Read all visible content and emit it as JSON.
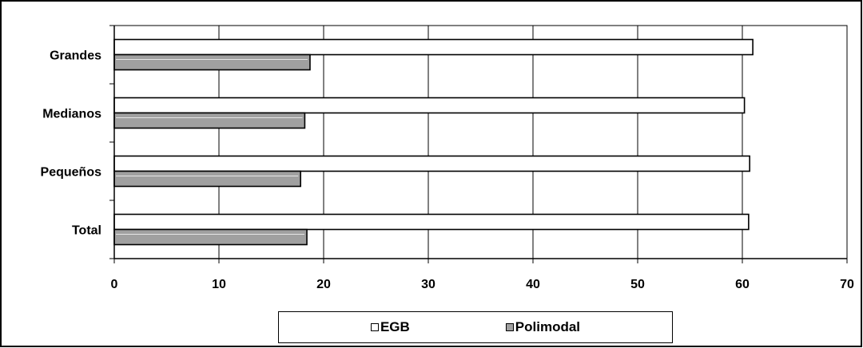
{
  "chart_data": {
    "type": "bar",
    "orientation": "horizontal",
    "categories": [
      "Grandes",
      "Medianos",
      "Pequeños",
      "Total"
    ],
    "series": [
      {
        "name": "EGB",
        "values": [
          61.0,
          60.2,
          60.7,
          60.6
        ],
        "color": "#ffffff"
      },
      {
        "name": "Polimodal",
        "values": [
          18.7,
          18.2,
          17.8,
          18.4
        ],
        "color": "#a0a0a0"
      }
    ],
    "xlim": [
      0,
      70
    ],
    "xticks": [
      0,
      10,
      20,
      30,
      40,
      50,
      60,
      70
    ],
    "grid": true,
    "legend_position": "bottom"
  }
}
